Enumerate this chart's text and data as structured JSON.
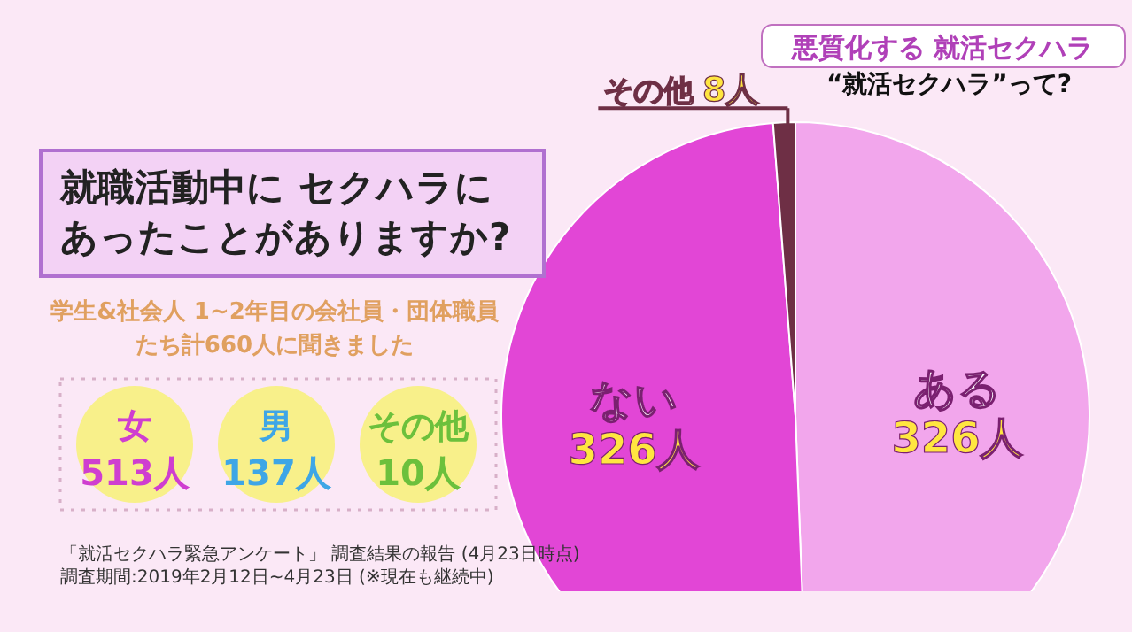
{
  "chart_data": {
    "type": "pie",
    "title": "就職活動中に セクハラにあったことがありますか?",
    "subtitle": "学生&社会人 1~2年目の会社員・団体職員たち計660人に聞きました",
    "categories": [
      "ある",
      "ない",
      "その他"
    ],
    "values": [
      326,
      326,
      8
    ],
    "value_labels": [
      "326人",
      "326人",
      "8人"
    ],
    "colors": [
      "#f2a6ec",
      "#e246d6",
      "#6e2f45"
    ],
    "annotations": [
      "悪質化する 就活セクハラ",
      "“就活セクハラ”って?",
      "女",
      "513人",
      "男",
      "137人",
      "その他",
      "10人",
      "「就活セクハラ緊急アンケート」 調査結果の報告 (4月23日時点)",
      "調査期間:2019年2月12日~4月23日 (※現在も継続中)"
    ]
  }
}
